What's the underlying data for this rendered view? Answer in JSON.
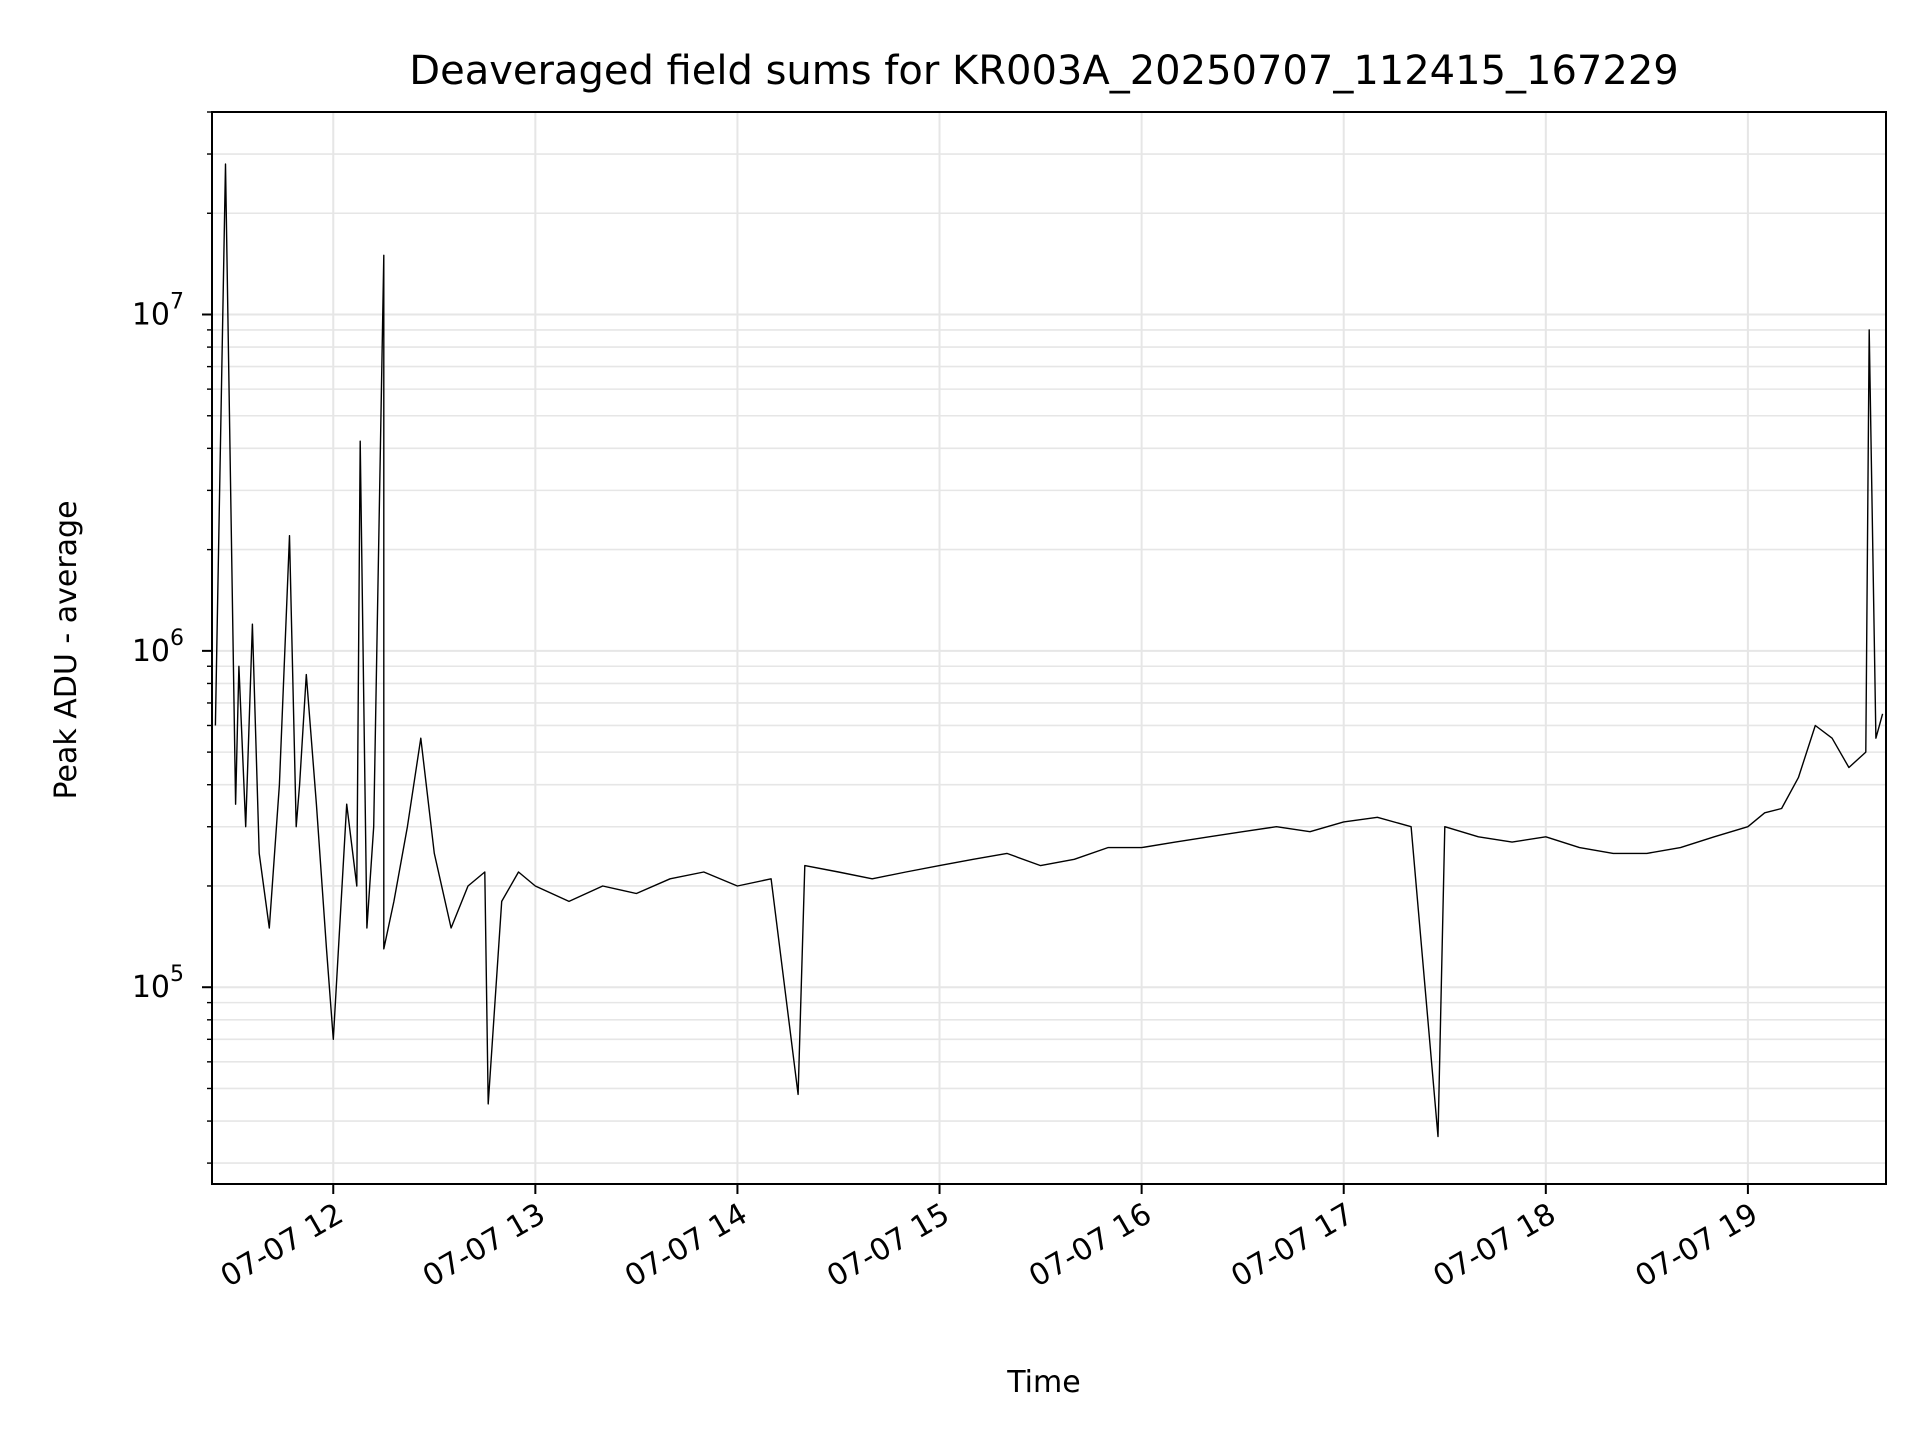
{
  "chart_data": {
    "type": "line",
    "title": "Deaveraged field sums for KR003A_20250707_112415_167229",
    "xlabel": "Time",
    "ylabel": "Peak ADU - average",
    "yscale": "log",
    "grid": true,
    "xlim": [
      "07-07 11:24",
      "07-07 19:41"
    ],
    "ylim": [
      26000,
      40000000
    ],
    "x_ticks": [
      {
        "value": "07-07 12",
        "label": "07-07 12"
      },
      {
        "value": "07-07 13",
        "label": "07-07 13"
      },
      {
        "value": "07-07 14",
        "label": "07-07 14"
      },
      {
        "value": "07-07 15",
        "label": "07-07 15"
      },
      {
        "value": "07-07 16",
        "label": "07-07 16"
      },
      {
        "value": "07-07 17",
        "label": "07-07 17"
      },
      {
        "value": "07-07 18",
        "label": "07-07 18"
      },
      {
        "value": "07-07 19",
        "label": "07-07 19"
      }
    ],
    "y_ticks": [
      {
        "value": 100000,
        "base": "10",
        "exp": "5"
      },
      {
        "value": 1000000,
        "base": "10",
        "exp": "6"
      },
      {
        "value": 10000000,
        "base": "10",
        "exp": "7"
      }
    ],
    "line_color": "#000000",
    "grid_color": "#e6e6e6",
    "series": [
      {
        "x": [
          "07-07 11:25",
          "07-07 11:28",
          "07-07 11:31",
          "07-07 11:32",
          "07-07 11:34",
          "07-07 11:36",
          "07-07 11:38",
          "07-07 11:41",
          "07-07 11:44",
          "07-07 11:47",
          "07-07 11:49",
          "07-07 11:50",
          "07-07 11:52",
          "07-07 11:55",
          "07-07 11:58",
          "07-07 12:00",
          "07-07 12:04",
          "07-07 12:07",
          "07-07 12:08",
          "07-07 12:10",
          "07-07 12:12",
          "07-07 12:15",
          "07-07 12:15",
          "07-07 12:18",
          "07-07 12:22",
          "07-07 12:26",
          "07-07 12:30",
          "07-07 12:35",
          "07-07 12:40",
          "07-07 12:45",
          "07-07 12:46",
          "07-07 12:50",
          "07-07 12:55",
          "07-07 13:00",
          "07-07 13:10",
          "07-07 13:20",
          "07-07 13:30",
          "07-07 13:40",
          "07-07 13:50",
          "07-07 14:00",
          "07-07 14:10",
          "07-07 14:18",
          "07-07 14:20",
          "07-07 14:30",
          "07-07 14:40",
          "07-07 14:50",
          "07-07 15:00",
          "07-07 15:10",
          "07-07 15:20",
          "07-07 15:30",
          "07-07 15:40",
          "07-07 15:50",
          "07-07 16:00",
          "07-07 16:10",
          "07-07 16:20",
          "07-07 16:30",
          "07-07 16:40",
          "07-07 16:50",
          "07-07 17:00",
          "07-07 17:10",
          "07-07 17:20",
          "07-07 17:28",
          "07-07 17:30",
          "07-07 17:40",
          "07-07 17:50",
          "07-07 18:00",
          "07-07 18:10",
          "07-07 18:20",
          "07-07 18:30",
          "07-07 18:40",
          "07-07 18:50",
          "07-07 19:00",
          "07-07 19:05",
          "07-07 19:10",
          "07-07 19:15",
          "07-07 19:20",
          "07-07 19:25",
          "07-07 19:30",
          "07-07 19:35",
          "07-07 19:36",
          "07-07 19:38",
          "07-07 19:40"
        ],
        "y": [
          600000,
          28000000,
          350000,
          900000,
          300000,
          1200000,
          250000,
          150000,
          400000,
          2200000,
          300000,
          400000,
          850000,
          350000,
          130000,
          70000,
          350000,
          200000,
          4200000,
          150000,
          300000,
          15000000,
          130000,
          180000,
          300000,
          550000,
          250000,
          150000,
          200000,
          220000,
          45000,
          180000,
          220000,
          200000,
          180000,
          200000,
          190000,
          210000,
          220000,
          200000,
          210000,
          48000,
          230000,
          220000,
          210000,
          220000,
          230000,
          240000,
          250000,
          230000,
          240000,
          260000,
          260000,
          270000,
          280000,
          290000,
          300000,
          290000,
          310000,
          320000,
          300000,
          36000,
          300000,
          280000,
          270000,
          280000,
          260000,
          250000,
          250000,
          260000,
          280000,
          300000,
          330000,
          340000,
          420000,
          600000,
          550000,
          450000,
          500000,
          9000000,
          550000,
          650000
        ]
      }
    ]
  }
}
